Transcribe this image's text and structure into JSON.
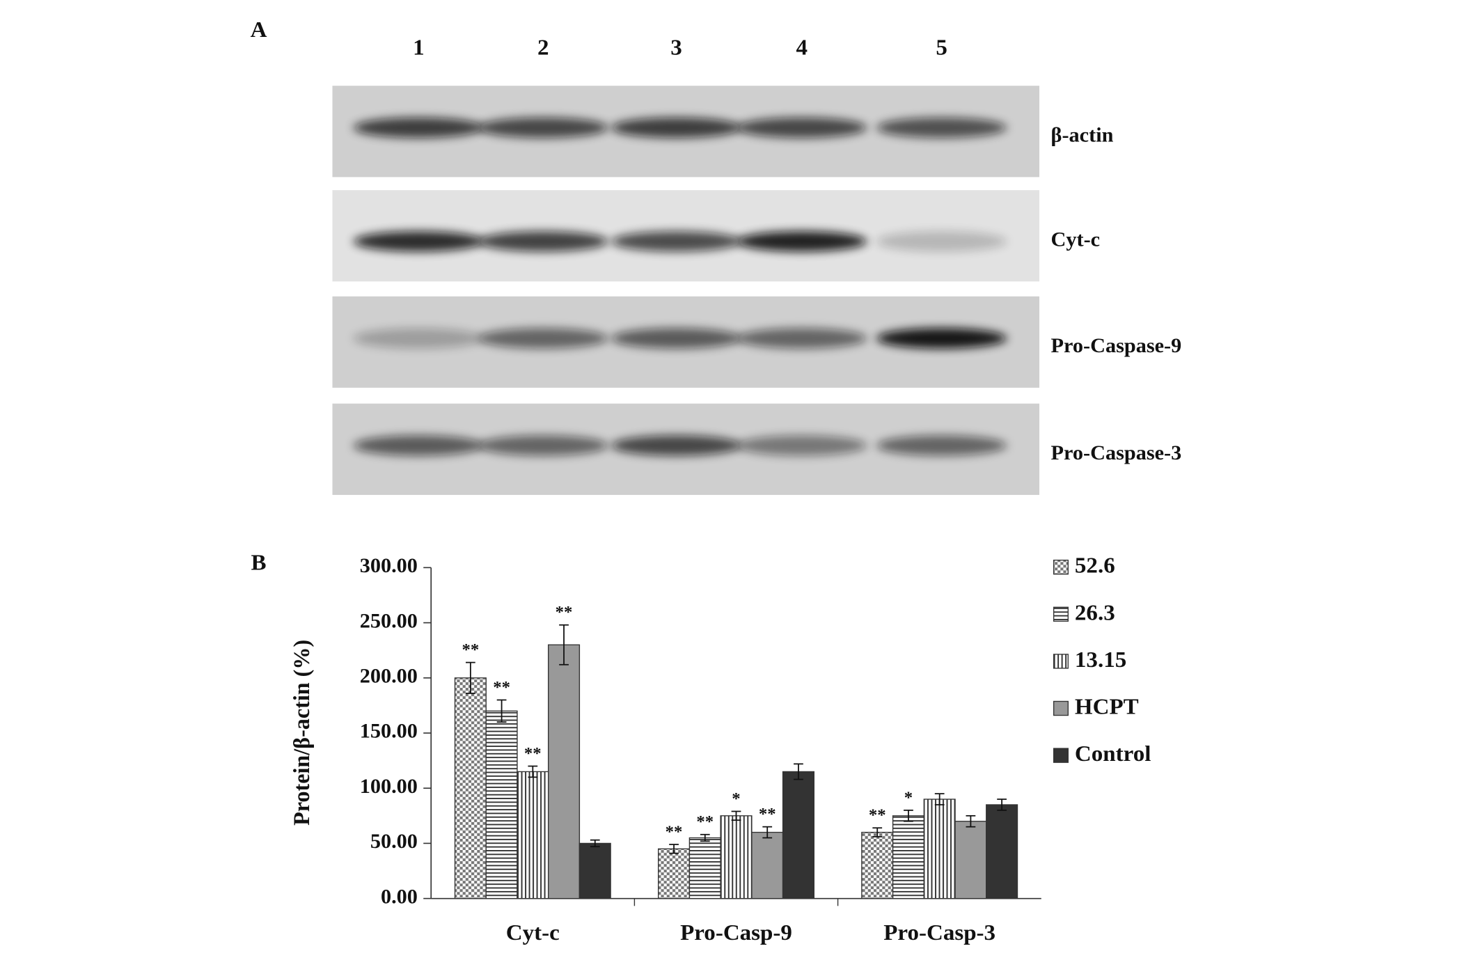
{
  "panel_a": {
    "label": "A",
    "lanes": [
      "1",
      "2",
      "3",
      "4",
      "5"
    ],
    "blots": [
      "β-actin",
      "Cyt-c",
      "Pro-Caspase-9",
      "Pro-Caspase-3"
    ]
  },
  "chart_data": {
    "type": "bar",
    "panel_label": "B",
    "y_label": "Protein/β-actin (%)",
    "categories": [
      "Cyt-c",
      "Pro-Casp-9",
      "Pro-Casp-3"
    ],
    "series": [
      {
        "name": "52.6",
        "color": "#ffffff",
        "pattern": "checker",
        "values": [
          200,
          45,
          60
        ],
        "errors": [
          14,
          4,
          4
        ],
        "annotations": [
          "**",
          "**",
          "**"
        ]
      },
      {
        "name": "26.3",
        "color": "#ffffff",
        "pattern": "horizontal",
        "values": [
          170,
          55,
          75
        ],
        "errors": [
          10,
          3,
          5
        ],
        "annotations": [
          "**",
          "**",
          "*"
        ]
      },
      {
        "name": "13.15",
        "color": "#ffffff",
        "pattern": "vertical",
        "values": [
          115,
          75,
          90
        ],
        "errors": [
          5,
          4,
          5
        ],
        "annotations": [
          "**",
          "*",
          null
        ]
      },
      {
        "name": "HCPT",
        "color": "#999999",
        "pattern": null,
        "values": [
          230,
          60,
          70
        ],
        "errors": [
          18,
          5,
          5
        ],
        "annotations": [
          "**",
          "**",
          null
        ]
      },
      {
        "name": "Control",
        "color": "#333333",
        "pattern": null,
        "values": [
          50,
          115,
          85
        ],
        "errors": [
          3,
          7,
          5
        ],
        "annotations": [
          null,
          null,
          null
        ]
      }
    ],
    "ylim": [
      0,
      300
    ],
    "yticks": [
      {
        "value": 0,
        "label": "0.00"
      },
      {
        "value": 50,
        "label": "50.00"
      },
      {
        "value": 100,
        "label": "100.00"
      },
      {
        "value": 150,
        "label": "150.00"
      },
      {
        "value": 200,
        "label": "200.00"
      },
      {
        "value": 250,
        "label": "250.00"
      },
      {
        "value": 300,
        "label": "300.00"
      }
    ],
    "legend": "right"
  }
}
